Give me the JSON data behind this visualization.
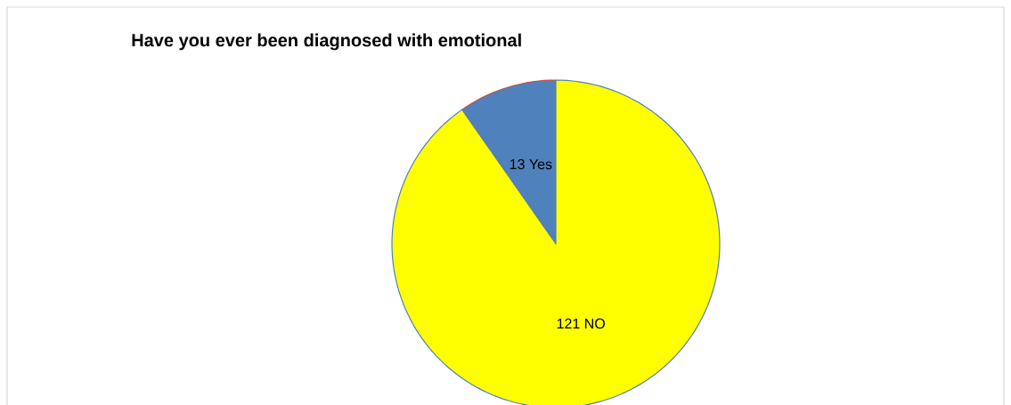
{
  "chart_data": {
    "type": "pie",
    "title": "Have you ever been diagnosed with emotional",
    "categories": [
      "Yes",
      "NO"
    ],
    "values": [
      13,
      121
    ],
    "colors": [
      "#4f81bd",
      "#ffff00"
    ],
    "data_labels": true
  }
}
